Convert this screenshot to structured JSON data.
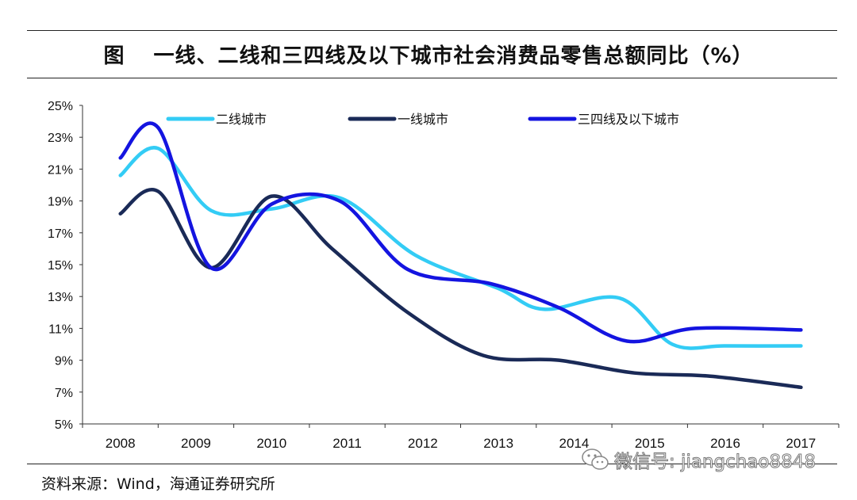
{
  "title": {
    "prefix": "图",
    "text": "一线、二线和三四线及以下城市社会消费品零售总额同比（%）"
  },
  "source": "资料来源：Wind，海通证券研究所",
  "watermark": {
    "text": "微信号: jiangchao8848",
    "icon": "wechat-icon"
  },
  "chart_data": {
    "type": "line",
    "categories": [
      "2008",
      "2009",
      "2010",
      "2011",
      "2012",
      "2013",
      "2014",
      "2015",
      "2016",
      "2017"
    ],
    "ylim": [
      5,
      25
    ],
    "yticks": [
      "5%",
      "7%",
      "9%",
      "11%",
      "13%",
      "15%",
      "17%",
      "19%",
      "21%",
      "23%",
      "25%"
    ],
    "grid": false,
    "legend_position": "top",
    "series": [
      {
        "name": "二线城市",
        "color": "#33ccf5",
        "points": [
          [
            0,
            20.6
          ],
          [
            0.5,
            22.3
          ],
          [
            1.2,
            18.4
          ],
          [
            2.0,
            18.5
          ],
          [
            2.9,
            19.2
          ],
          [
            3.9,
            15.6
          ],
          [
            5.0,
            13.5
          ],
          [
            5.6,
            12.2
          ],
          [
            6.6,
            12.9
          ],
          [
            7.3,
            10.0
          ],
          [
            8.0,
            9.9
          ],
          [
            9.0,
            9.9
          ]
        ]
      },
      {
        "name": "一线城市",
        "color": "#1a2a57",
        "points": [
          [
            0,
            18.2
          ],
          [
            0.5,
            19.6
          ],
          [
            1.2,
            14.8
          ],
          [
            2.0,
            19.3
          ],
          [
            2.8,
            16.0
          ],
          [
            3.8,
            12.0
          ],
          [
            4.8,
            9.3
          ],
          [
            5.8,
            9.0
          ],
          [
            6.8,
            8.2
          ],
          [
            7.8,
            8.0
          ],
          [
            9.0,
            7.3
          ]
        ]
      },
      {
        "name": "三四线及以下城市",
        "color": "#1414e0",
        "points": [
          [
            0,
            21.7
          ],
          [
            0.5,
            23.6
          ],
          [
            1.2,
            14.8
          ],
          [
            2.0,
            18.8
          ],
          [
            2.9,
            19.0
          ],
          [
            3.8,
            14.7
          ],
          [
            4.9,
            13.8
          ],
          [
            5.8,
            12.3
          ],
          [
            6.7,
            10.2
          ],
          [
            7.6,
            11.0
          ],
          [
            9.0,
            10.9
          ]
        ]
      }
    ]
  }
}
